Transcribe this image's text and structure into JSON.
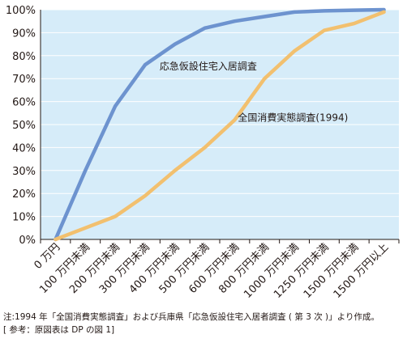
{
  "chart_data": {
    "type": "line",
    "categories": [
      "0 万円",
      "100 万円未満",
      "200 万円未満",
      "300 万円未満",
      "400 万円未満",
      "500 万円未満",
      "600 万円未満",
      "800 万円未満",
      "1000 万円未満",
      "1250 万円未満",
      "1500 万円未満",
      "1500 万円以上"
    ],
    "series": [
      {
        "name": "応急仮設住宅入居調査",
        "color": "#6d93cf",
        "values": [
          0,
          30,
          58,
          76,
          85,
          92,
          95,
          97,
          99,
          99.5,
          99.8,
          100
        ]
      },
      {
        "name": "全国消費実態調査(1994)",
        "color": "#f2c06f",
        "values": [
          0,
          5,
          10,
          19,
          30,
          40,
          52,
          70,
          82,
          91,
          94,
          99
        ]
      }
    ],
    "ylim": [
      0,
      100
    ],
    "yticks": [
      "0%",
      "10%",
      "20%",
      "30%",
      "40%",
      "50%",
      "60%",
      "70%",
      "80%",
      "90%",
      "100%"
    ],
    "plot_background": "#d6ecf9",
    "grid": "horizontal"
  },
  "notes": {
    "line1": "注:1994 年「全国消費実態調査」および兵庫県「応急仮設住宅入居者調査 ( 第 3 次 )」より作成。",
    "line2": "[ 参考：原図表は DP の図 1]"
  }
}
